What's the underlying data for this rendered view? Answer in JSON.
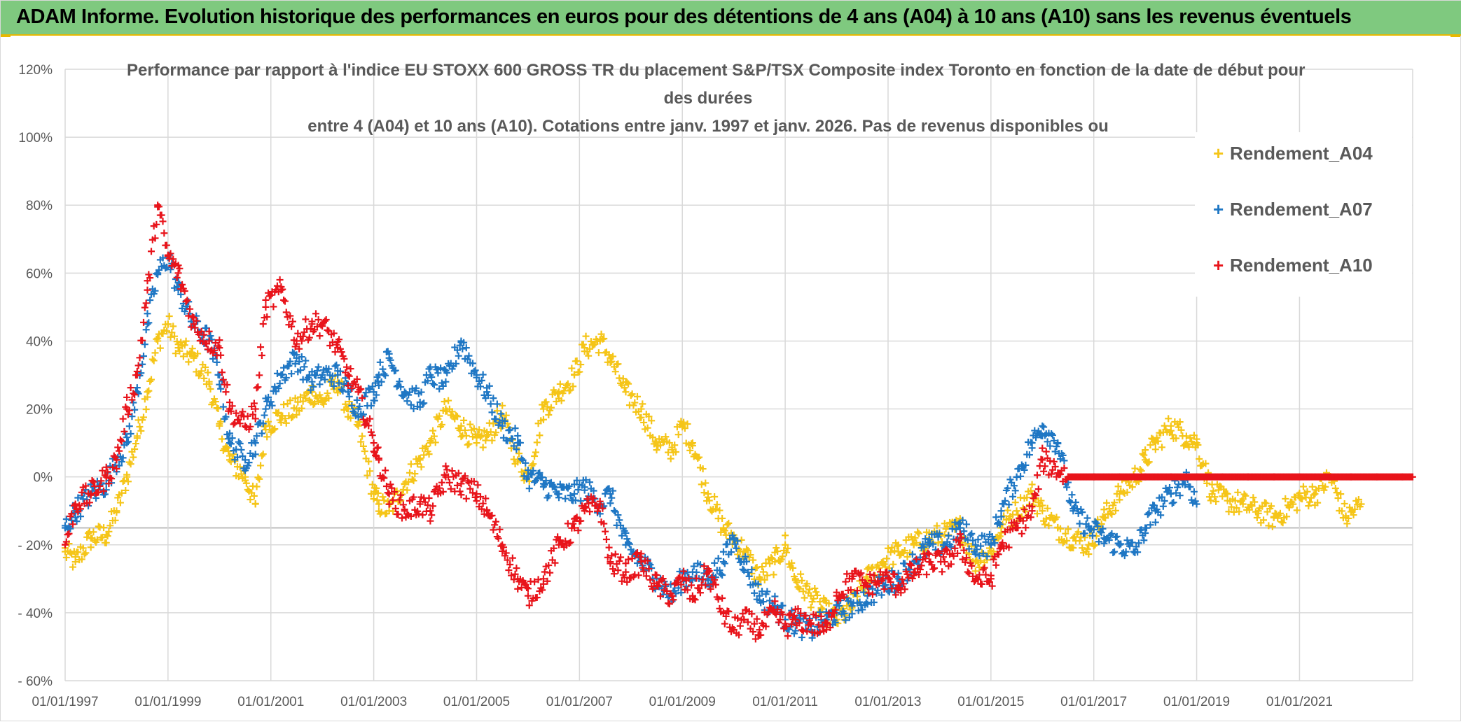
{
  "header": {
    "title": "ADAM Informe. Evolution historique des performances en euros pour des détentions de 4 ans (A04) à 10 ans (A10) sans les revenus éventuels",
    "background": "#7fc97f",
    "accent": "#e8b800"
  },
  "chart_data": {
    "type": "scatter",
    "title_lines": [
      "Performance par rapport à l'indice EU STOXX 600 GROSS TR  du placement S&P/TSX Composite index Toronto en fonction de la date de début pour",
      "des durées",
      "entre 4 (A04) et 10 ans (A10). Cotations entre janv. 1997 et janv. 2026. Pas de revenus disponibles ou"
    ],
    "xlabel": "",
    "ylabel": "",
    "x_range": [
      1997.0,
      2023.2
    ],
    "ylim": [
      -60,
      120
    ],
    "y_ticks": [
      120,
      100,
      80,
      60,
      40,
      20,
      0,
      -20,
      -40,
      -60
    ],
    "y_tick_labels": [
      "120%",
      "100%",
      "80%",
      "60%",
      "40%",
      "20%",
      "0%",
      "- 20%",
      "- 40%",
      "- 60%"
    ],
    "x_ticks": [
      1997,
      1999,
      2001,
      2003,
      2005,
      2007,
      2009,
      2011,
      2013,
      2015,
      2017,
      2019,
      2021
    ],
    "x_tick_labels": [
      "01/01/1997",
      "01/01/1999",
      "01/01/2001",
      "01/01/2003",
      "01/01/2005",
      "01/01/2007",
      "01/01/2009",
      "01/01/2011",
      "01/01/2013",
      "01/01/2015",
      "01/01/2017",
      "01/01/2019",
      "01/01/2021"
    ],
    "grid": true,
    "legend_position": "top-right",
    "marker": "+",
    "series": [
      {
        "name": "Rendement_A04",
        "color": "#f5c518",
        "x": [
          1997.0,
          1997.2,
          1997.5,
          1997.8,
          1998.0,
          1998.2,
          1998.4,
          1998.6,
          1998.8,
          1999.0,
          1999.2,
          1999.5,
          1999.8,
          2000.0,
          2000.2,
          2000.5,
          2000.7,
          2000.9,
          2001.2,
          2001.5,
          2001.8,
          2002.0,
          2002.3,
          2002.5,
          2002.7,
          2003.0,
          2003.1,
          2003.3,
          2003.6,
          2003.9,
          2004.1,
          2004.4,
          2004.7,
          2005.0,
          2005.2,
          2005.5,
          2005.8,
          2006.0,
          2006.3,
          2006.6,
          2006.9,
          2007.1,
          2007.4,
          2007.6,
          2007.9,
          2008.2,
          2008.5,
          2008.8,
          2009.0,
          2009.2,
          2009.5,
          2009.8,
          2010.0,
          2010.2,
          2010.5,
          2010.8,
          2011.0,
          2011.2,
          2011.5,
          2011.8,
          2012.0,
          2012.3,
          2012.6,
          2012.9,
          2013.2,
          2013.5,
          2013.8,
          2014.1,
          2014.4,
          2014.7,
          2015.0,
          2015.2,
          2015.5,
          2015.8,
          2016.0,
          2016.3,
          2016.6,
          2016.9,
          2017.2,
          2017.5,
          2017.8,
          2018.0,
          2018.2,
          2018.5,
          2018.8,
          2019.0,
          2019.3,
          2019.6,
          2019.9,
          2020.2,
          2020.5,
          2020.8,
          2021.0,
          2021.3,
          2021.6,
          2021.9,
          2022.2
        ],
        "values": [
          -22,
          -25,
          -18,
          -17,
          -10,
          0,
          12,
          25,
          40,
          45,
          38,
          35,
          28,
          15,
          5,
          0,
          -8,
          15,
          18,
          20,
          25,
          22,
          28,
          20,
          15,
          -5,
          -8,
          -10,
          -2,
          5,
          10,
          20,
          15,
          10,
          12,
          18,
          5,
          0,
          20,
          25,
          30,
          38,
          40,
          35,
          25,
          20,
          10,
          8,
          15,
          10,
          -5,
          -15,
          -18,
          -22,
          -30,
          -25,
          -20,
          -30,
          -35,
          -40,
          -42,
          -38,
          -30,
          -25,
          -22,
          -20,
          -18,
          -17,
          -15,
          -25,
          -22,
          -15,
          -10,
          -5,
          -10,
          -15,
          -18,
          -20,
          -12,
          -5,
          0,
          5,
          10,
          15,
          12,
          10,
          -5,
          -7,
          -8,
          -10,
          -12,
          -9,
          -6,
          -5,
          0,
          -12,
          -8
        ]
      },
      {
        "name": "Rendement_A07",
        "color": "#1f77c4",
        "x": [
          1997.0,
          1997.2,
          1997.5,
          1997.8,
          1998.0,
          1998.2,
          1998.4,
          1998.6,
          1998.8,
          1999.0,
          1999.2,
          1999.5,
          1999.8,
          2000.0,
          2000.2,
          2000.5,
          2000.7,
          2000.9,
          2001.2,
          2001.5,
          2001.8,
          2002.0,
          2002.3,
          2002.5,
          2002.7,
          2003.0,
          2003.1,
          2003.3,
          2003.6,
          2003.9,
          2004.1,
          2004.4,
          2004.7,
          2005.0,
          2005.2,
          2005.5,
          2005.8,
          2006.0,
          2006.3,
          2006.6,
          2006.9,
          2007.1,
          2007.4,
          2007.6,
          2007.9,
          2008.2,
          2008.5,
          2008.8,
          2009.0,
          2009.2,
          2009.5,
          2009.8,
          2010.0,
          2010.2,
          2010.5,
          2010.8,
          2011.0,
          2011.2,
          2011.5,
          2011.8,
          2012.0,
          2012.3,
          2012.6,
          2012.9,
          2013.2,
          2013.5,
          2013.8,
          2014.1,
          2014.4,
          2014.7,
          2015.0,
          2015.2,
          2015.5,
          2015.8,
          2016.0,
          2016.3,
          2016.6,
          2016.9,
          2017.2,
          2017.5,
          2017.8,
          2018.0,
          2018.2,
          2018.5,
          2018.8,
          2019.0
        ],
        "values": [
          -15,
          -10,
          -5,
          -2,
          5,
          10,
          25,
          45,
          60,
          65,
          55,
          45,
          40,
          30,
          10,
          5,
          10,
          20,
          30,
          35,
          28,
          30,
          30,
          25,
          20,
          25,
          30,
          35,
          25,
          22,
          30,
          28,
          40,
          30,
          25,
          15,
          10,
          0,
          -2,
          -5,
          -5,
          -3,
          -8,
          -5,
          -20,
          -25,
          -30,
          -35,
          -30,
          -28,
          -30,
          -25,
          -18,
          -25,
          -35,
          -38,
          -42,
          -43,
          -45,
          -42,
          -40,
          -38,
          -35,
          -32,
          -30,
          -25,
          -20,
          -20,
          -15,
          -20,
          -20,
          -10,
          0,
          10,
          15,
          10,
          -10,
          -15,
          -18,
          -20,
          -22,
          -15,
          -10,
          -5,
          0,
          -8
        ]
      },
      {
        "name": "Rendement_A10",
        "color": "#e8141b",
        "x": [
          1997.0,
          1997.2,
          1997.5,
          1997.8,
          1998.0,
          1998.2,
          1998.4,
          1998.6,
          1998.8,
          1999.0,
          1999.2,
          1999.5,
          1999.8,
          2000.0,
          2000.2,
          2000.5,
          2000.7,
          2000.9,
          2001.2,
          2001.5,
          2001.8,
          2002.0,
          2002.3,
          2002.5,
          2002.7,
          2003.0,
          2003.1,
          2003.3,
          2003.6,
          2003.9,
          2004.1,
          2004.4,
          2004.7,
          2005.0,
          2005.2,
          2005.5,
          2005.8,
          2006.0,
          2006.3,
          2006.6,
          2006.9,
          2007.1,
          2007.4,
          2007.6,
          2007.9,
          2008.2,
          2008.5,
          2008.8,
          2009.0,
          2009.2,
          2009.5,
          2009.8,
          2010.0,
          2010.2,
          2010.5,
          2010.8,
          2011.0,
          2011.2,
          2011.5,
          2011.8,
          2012.0,
          2012.3,
          2012.6,
          2012.9,
          2013.2,
          2013.5,
          2013.8,
          2014.1,
          2014.4,
          2014.7,
          2015.0,
          2015.2,
          2015.5,
          2015.8,
          2016.0,
          2016.5,
          2017.0,
          2017.5,
          2018.0,
          2018.5,
          2019.0,
          2019.5,
          2020.0,
          2020.5,
          2021.0,
          2021.5,
          2022.0,
          2022.5,
          2023.0,
          2023.2
        ],
        "values": [
          -20,
          -8,
          -5,
          0,
          5,
          20,
          30,
          55,
          80,
          65,
          60,
          45,
          40,
          38,
          20,
          15,
          20,
          50,
          55,
          40,
          45,
          45,
          38,
          30,
          25,
          10,
          5,
          -5,
          -10,
          -8,
          -10,
          0,
          -2,
          -5,
          -10,
          -20,
          -30,
          -35,
          -30,
          -20,
          -15,
          -10,
          -8,
          -25,
          -28,
          -25,
          -32,
          -35,
          -30,
          -35,
          -28,
          -40,
          -45,
          -42,
          -45,
          -40,
          -44,
          -42,
          -43,
          -45,
          -35,
          -30,
          -32,
          -30,
          -32,
          -28,
          -25,
          -25,
          -20,
          -30,
          -30,
          -20,
          -15,
          -10,
          5,
          0,
          0,
          0,
          0,
          0,
          0,
          0,
          0,
          0,
          0,
          0,
          0,
          0,
          0,
          0
        ]
      }
    ]
  }
}
